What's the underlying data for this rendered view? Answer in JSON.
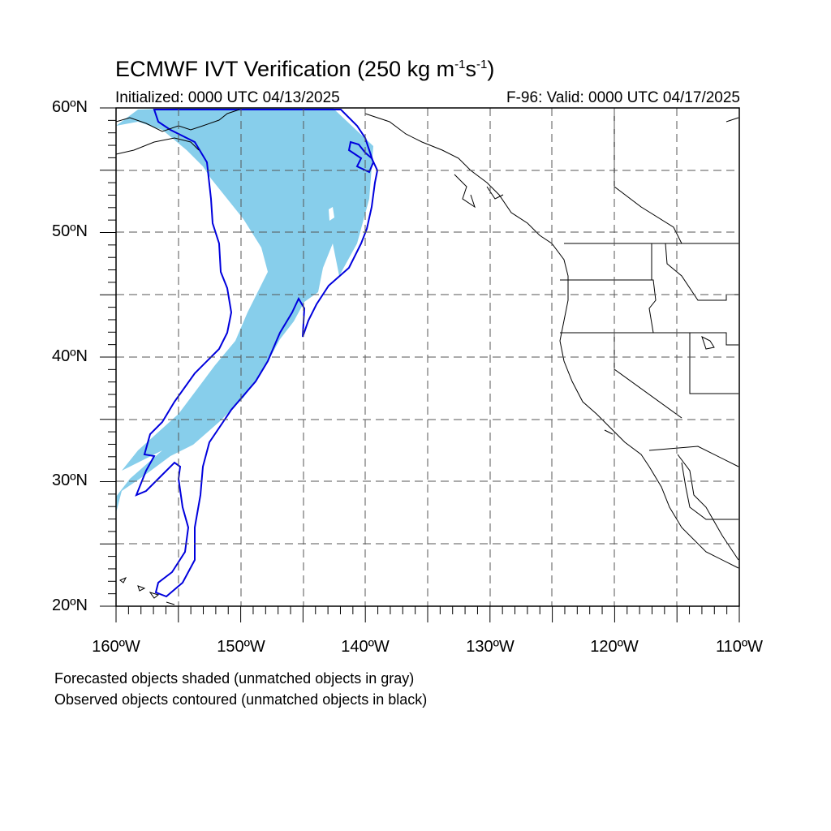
{
  "title": {
    "text": "ECMWF IVT Verification (250 kg m",
    "sup1": "-1",
    "mid": "s",
    "sup2": "-1",
    "end": ")"
  },
  "initialized": "Initialized: 0000 UTC 04/13/2025",
  "valid": "F-96: Valid: 0000 UTC 04/17/2025",
  "axes": {
    "lat_labels": [
      "60ºN",
      "50ºN",
      "40ºN",
      "30ºN",
      "20ºN"
    ],
    "lon_labels": [
      "160ºW",
      "150ºW",
      "140ºW",
      "130ºW",
      "120ºW",
      "110ºW"
    ],
    "lat_range": [
      20,
      60
    ],
    "lon_range": [
      -160,
      -110
    ],
    "grid_spacing_deg": 5,
    "gridlines": "dashed"
  },
  "legend": {
    "line1": "Forecasted objects shaded (unmatched objects in gray)",
    "line2": "Observed objects contoured (unmatched objects in black)"
  },
  "colors": {
    "forecast_fill": "#87CEEB",
    "observed_contour": "#0000DD",
    "coastline": "#000000",
    "grid": "#555555"
  }
}
